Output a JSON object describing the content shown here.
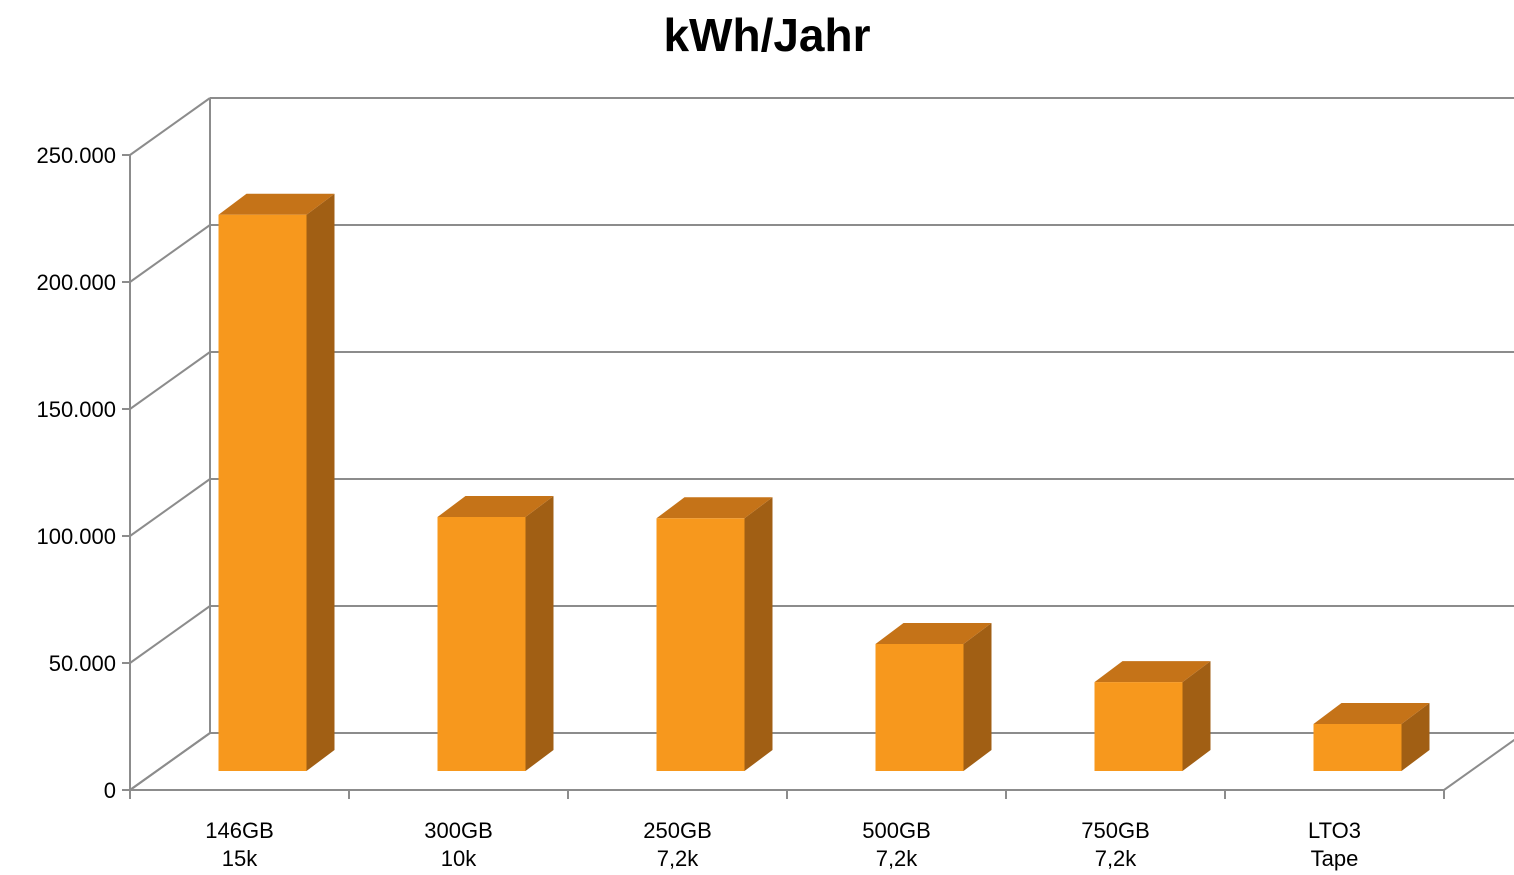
{
  "chart_data": {
    "type": "bar",
    "title": "kWh/Jahr",
    "xlabel": "",
    "ylabel": "",
    "categories": [
      "146GB\n15k",
      "300GB\n10k",
      "250GB\n7,2k",
      "500GB\n7,2k",
      "750GB\n7,2k",
      "LTO3\nTape"
    ],
    "values": [
      219000,
      100000,
      99500,
      50000,
      35000,
      18500
    ],
    "ylim": [
      0,
      250000
    ],
    "yticks": [
      0,
      50000,
      100000,
      150000,
      200000,
      250000
    ],
    "ytick_labels": [
      "0",
      "50.000",
      "100.000",
      "150.000",
      "200.000",
      "250.000"
    ],
    "grid": true,
    "style": "3d-column",
    "colors": {
      "bar_front": "#F7981D",
      "bar_side": "#A15F14",
      "bar_top": "#C57318",
      "grid": "#8C8C8C",
      "axis": "#8C8C8C"
    }
  }
}
